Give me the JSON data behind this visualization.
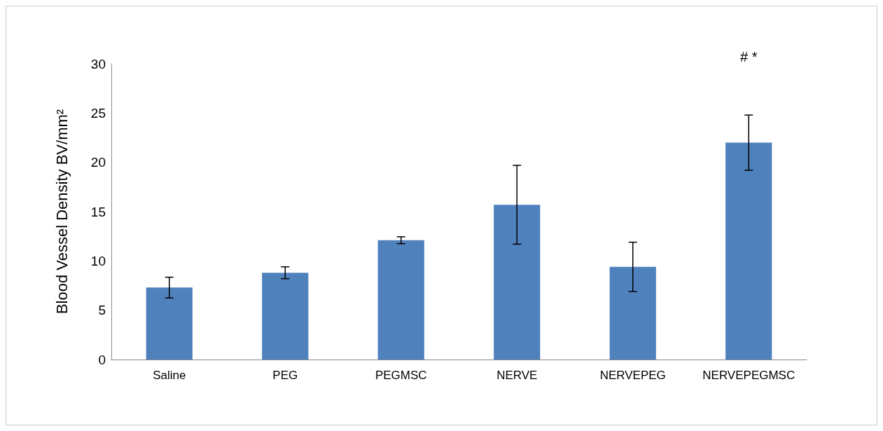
{
  "chart_data": {
    "type": "bar",
    "ylabel": "Blood Vessel Density BV/mm²",
    "categories": [
      "Saline",
      "PEG",
      "PEGMSC",
      "NERVE",
      "NERVEPEG",
      "NERVEPEGMSC"
    ],
    "values": [
      7.3,
      8.8,
      12.1,
      15.7,
      9.4,
      22.0
    ],
    "errors": [
      1.05,
      0.6,
      0.35,
      4.0,
      2.5,
      2.8
    ],
    "color": "#4f81bd",
    "ylim": [
      0,
      30
    ],
    "yticks": [
      0,
      5,
      10,
      15,
      20,
      25,
      30
    ],
    "grid": false,
    "annotations": [
      "# *"
    ]
  }
}
